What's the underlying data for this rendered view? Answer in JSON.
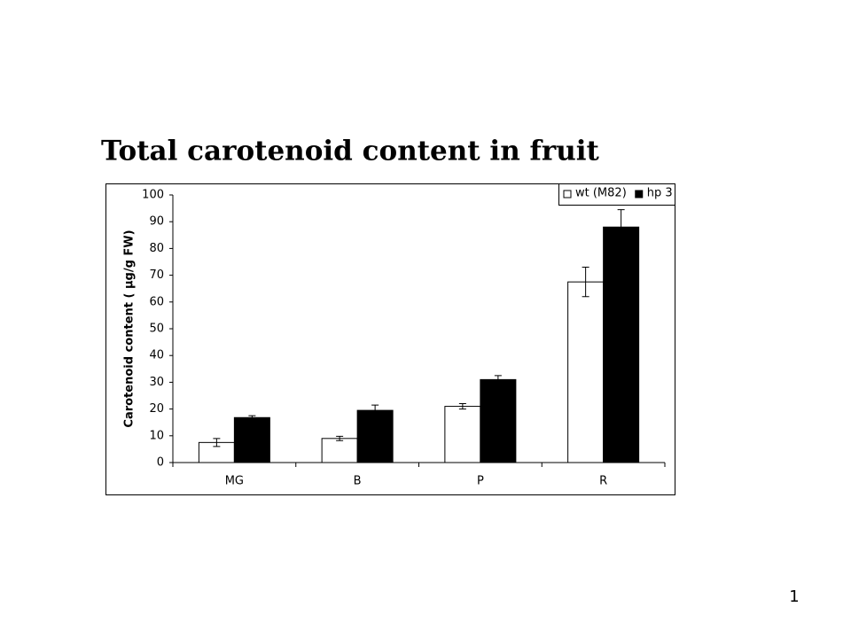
{
  "chart_data": {
    "type": "bar",
    "title": "Total carotenoid content in fruit",
    "y_label": "Carotenoid content ( µg/g FW)",
    "categories": [
      "MG",
      "B",
      "P",
      "R"
    ],
    "series": [
      {
        "name": "wt (M82)",
        "color": "#ffffff",
        "values": [
          7.5,
          9,
          21,
          67.5
        ],
        "errors": [
          1.5,
          0.8,
          1,
          5.5
        ]
      },
      {
        "name": "hp 3",
        "color": "#000000",
        "values": [
          16.8,
          19.5,
          31,
          88
        ],
        "errors": [
          0.7,
          2,
          1.5,
          6.5
        ]
      }
    ],
    "ylim": [
      0,
      100
    ],
    "yticks": [
      0,
      10,
      20,
      30,
      40,
      50,
      60,
      70,
      80,
      90,
      100
    ],
    "legend": "upper right",
    "grid": false
  },
  "slide": {
    "page_number": "1"
  }
}
